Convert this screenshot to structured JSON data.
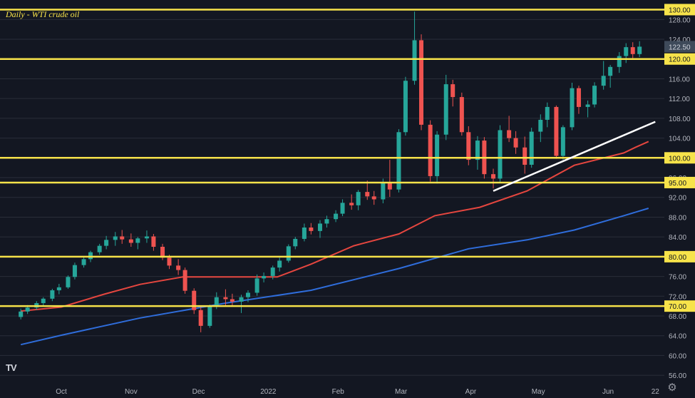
{
  "chart_data": {
    "type": "candlestick",
    "title": "Daily - WTI crude oil",
    "x_ticks": [
      "Oct",
      "Nov",
      "Dec",
      "2022",
      "Feb",
      "Mar",
      "Apr",
      "May",
      "Jun",
      "22"
    ],
    "y_ticks": [
      56.0,
      60.0,
      64.0,
      68.0,
      72.0,
      76.0,
      80.0,
      84.0,
      88.0,
      92.0,
      96.0,
      100.0,
      104.0,
      108.0,
      112.0,
      116.0,
      120.0,
      124.0,
      128.0
    ],
    "ylim": [
      54.0,
      130.5
    ],
    "price_label": "122.50",
    "horizontal_levels": [
      {
        "label": "130.00",
        "value": 130.0
      },
      {
        "label": "120.00",
        "value": 120.0
      },
      {
        "label": "100.00",
        "value": 100.0
      },
      {
        "label": "95.00",
        "value": 95.0
      },
      {
        "label": "80.00",
        "value": 80.0
      },
      {
        "label": "70.00",
        "value": 70.0
      }
    ],
    "trendline": {
      "from": {
        "date": "2022-04-11",
        "value": 93.3
      },
      "to": {
        "date": "2022-06-22",
        "value": 107.3
      }
    },
    "moving_averages": [
      {
        "color": "#e5463f",
        "points": [
          [
            "2021-09-13",
            69.0
          ],
          [
            "2021-10-01",
            69.8
          ],
          [
            "2021-10-20",
            72.4
          ],
          [
            "2021-11-05",
            74.4
          ],
          [
            "2021-11-24",
            75.9
          ],
          [
            "2021-12-13",
            75.9
          ],
          [
            "2022-01-05",
            75.9
          ],
          [
            "2022-01-20",
            78.5
          ],
          [
            "2022-02-08",
            82.2
          ],
          [
            "2022-02-28",
            84.6
          ],
          [
            "2022-03-16",
            88.3
          ],
          [
            "2022-04-05",
            90.0
          ],
          [
            "2022-04-26",
            93.3
          ],
          [
            "2022-05-17",
            98.5
          ],
          [
            "2022-06-08",
            101.0
          ],
          [
            "2022-06-13",
            102.1
          ],
          [
            "2022-06-19",
            103.3
          ]
        ]
      },
      {
        "color": "#2f6ddb",
        "points": [
          [
            "2021-09-13",
            62.2
          ],
          [
            "2021-10-01",
            64.1
          ],
          [
            "2021-11-05",
            67.6
          ],
          [
            "2021-12-13",
            70.6
          ],
          [
            "2022-01-20",
            73.2
          ],
          [
            "2022-02-28",
            77.6
          ],
          [
            "2022-03-31",
            81.6
          ],
          [
            "2022-04-26",
            83.4
          ],
          [
            "2022-05-17",
            85.4
          ],
          [
            "2022-06-08",
            88.3
          ],
          [
            "2022-06-19",
            89.8
          ]
        ]
      }
    ],
    "candles": [
      [
        "2021-09-13",
        67.8,
        69.5,
        67.3,
        68.9
      ],
      [
        "2021-09-16",
        68.9,
        70.2,
        68.4,
        69.7
      ],
      [
        "2021-09-20",
        69.7,
        71.0,
        69.2,
        70.6
      ],
      [
        "2021-09-23",
        70.6,
        71.8,
        70.0,
        71.5
      ],
      [
        "2021-09-27",
        71.5,
        73.5,
        71.0,
        73.2
      ],
      [
        "2021-09-30",
        73.2,
        74.5,
        72.4,
        73.8
      ],
      [
        "2021-10-04",
        73.8,
        76.2,
        73.5,
        75.9
      ],
      [
        "2021-10-07",
        75.9,
        78.8,
        75.4,
        78.3
      ],
      [
        "2021-10-11",
        78.3,
        80.0,
        77.8,
        79.5
      ],
      [
        "2021-10-14",
        79.5,
        81.2,
        78.9,
        80.9
      ],
      [
        "2021-10-18",
        80.9,
        82.6,
        80.4,
        82.2
      ],
      [
        "2021-10-21",
        82.2,
        84.2,
        81.5,
        83.4
      ],
      [
        "2021-10-25",
        83.4,
        85.0,
        82.2,
        84.1
      ],
      [
        "2021-10-28",
        84.1,
        85.4,
        82.6,
        83.5
      ],
      [
        "2021-11-01",
        83.5,
        84.7,
        82.0,
        82.8
      ],
      [
        "2021-11-04",
        82.8,
        84.0,
        81.5,
        83.7
      ],
      [
        "2021-11-08",
        83.7,
        85.3,
        82.8,
        84.1
      ],
      [
        "2021-11-11",
        84.1,
        84.6,
        81.2,
        82.0
      ],
      [
        "2021-11-15",
        82.0,
        82.6,
        79.3,
        79.8
      ],
      [
        "2021-11-18",
        79.8,
        80.4,
        77.5,
        78.2
      ],
      [
        "2021-11-22",
        78.2,
        79.5,
        76.3,
        77.3
      ],
      [
        "2021-11-25",
        77.3,
        77.8,
        72.5,
        73.1
      ],
      [
        "2021-11-29",
        73.1,
        73.6,
        68.4,
        69.2
      ],
      [
        "2021-12-02",
        69.2,
        69.8,
        64.7,
        66.0
      ],
      [
        "2021-12-06",
        66.0,
        70.3,
        65.6,
        70.0
      ],
      [
        "2021-12-09",
        70.0,
        72.8,
        69.4,
        71.8
      ],
      [
        "2021-12-13",
        71.8,
        73.4,
        70.1,
        71.4
      ],
      [
        "2021-12-16",
        71.4,
        72.5,
        70.0,
        70.9
      ],
      [
        "2021-12-20",
        70.9,
        72.3,
        68.6,
        71.8
      ],
      [
        "2021-12-23",
        71.8,
        73.2,
        70.8,
        72.7
      ],
      [
        "2021-12-27",
        72.7,
        76.4,
        72.1,
        75.6
      ],
      [
        "2021-12-30",
        75.6,
        76.8,
        74.8,
        76.1
      ],
      [
        "2022-01-03",
        76.1,
        78.2,
        75.4,
        77.8
      ],
      [
        "2022-01-06",
        77.8,
        79.8,
        77.0,
        79.2
      ],
      [
        "2022-01-10",
        79.2,
        82.5,
        78.8,
        82.1
      ],
      [
        "2022-01-13",
        82.1,
        84.0,
        81.5,
        83.6
      ],
      [
        "2022-01-17",
        83.6,
        86.7,
        83.1,
        85.9
      ],
      [
        "2022-01-20",
        85.9,
        86.8,
        84.5,
        85.2
      ],
      [
        "2022-01-24",
        85.2,
        87.4,
        83.8,
        86.7
      ],
      [
        "2022-01-27",
        86.7,
        88.3,
        85.9,
        87.6
      ],
      [
        "2022-01-31",
        87.6,
        89.4,
        87.0,
        88.7
      ],
      [
        "2022-02-03",
        88.7,
        91.6,
        88.2,
        90.9
      ],
      [
        "2022-02-07",
        90.9,
        92.6,
        89.5,
        90.4
      ],
      [
        "2022-02-10",
        90.4,
        93.5,
        89.4,
        93.1
      ],
      [
        "2022-02-14",
        93.1,
        95.4,
        91.5,
        92.2
      ],
      [
        "2022-02-17",
        92.2,
        93.3,
        90.5,
        91.6
      ],
      [
        "2022-02-21",
        91.6,
        95.8,
        90.8,
        95.1
      ],
      [
        "2022-02-24",
        95.1,
        99.6,
        92.1,
        93.6
      ],
      [
        "2022-02-28",
        93.6,
        105.8,
        93.0,
        105.2
      ],
      [
        "2022-03-03",
        105.2,
        116.4,
        104.5,
        115.6
      ],
      [
        "2022-03-07",
        115.6,
        129.6,
        114.8,
        123.8
      ],
      [
        "2022-03-10",
        123.8,
        125.0,
        105.6,
        106.7
      ],
      [
        "2022-03-14",
        106.7,
        107.6,
        95.2,
        96.3
      ],
      [
        "2022-03-17",
        96.3,
        105.4,
        94.8,
        104.7
      ],
      [
        "2022-03-21",
        104.7,
        116.8,
        103.6,
        114.9
      ],
      [
        "2022-03-24",
        114.9,
        115.8,
        110.4,
        112.3
      ],
      [
        "2022-03-28",
        112.3,
        113.2,
        104.5,
        105.2
      ],
      [
        "2022-03-31",
        105.2,
        106.4,
        98.5,
        99.6
      ],
      [
        "2022-04-04",
        99.6,
        104.4,
        97.6,
        103.5
      ],
      [
        "2022-04-07",
        103.5,
        104.2,
        95.8,
        96.7
      ],
      [
        "2022-04-11",
        96.7,
        97.8,
        93.8,
        95.8
      ],
      [
        "2022-04-14",
        95.8,
        106.6,
        95.1,
        105.6
      ],
      [
        "2022-04-18",
        105.6,
        108.5,
        103.2,
        104.0
      ],
      [
        "2022-04-21",
        104.0,
        105.4,
        100.8,
        102.1
      ],
      [
        "2022-04-25",
        102.1,
        104.3,
        96.8,
        98.6
      ],
      [
        "2022-04-28",
        98.6,
        106.1,
        98.0,
        105.3
      ],
      [
        "2022-05-02",
        105.3,
        108.8,
        103.2,
        107.7
      ],
      [
        "2022-05-05",
        107.7,
        111.2,
        106.2,
        110.3
      ],
      [
        "2022-05-09",
        110.3,
        110.6,
        99.8,
        100.4
      ],
      [
        "2022-05-12",
        100.4,
        106.6,
        99.6,
        106.2
      ],
      [
        "2022-05-16",
        106.2,
        115.2,
        105.6,
        114.1
      ],
      [
        "2022-05-19",
        114.1,
        114.6,
        108.9,
        110.3
      ],
      [
        "2022-05-23",
        110.3,
        111.6,
        108.2,
        110.8
      ],
      [
        "2022-05-26",
        110.8,
        115.3,
        110.2,
        114.6
      ],
      [
        "2022-05-30",
        114.6,
        119.6,
        113.8,
        116.6
      ],
      [
        "2022-06-02",
        116.6,
        118.8,
        114.2,
        118.4
      ],
      [
        "2022-06-06",
        118.4,
        121.4,
        117.2,
        120.6
      ],
      [
        "2022-06-09",
        120.6,
        123.2,
        119.2,
        122.4
      ],
      [
        "2022-06-12",
        122.4,
        123.4,
        120.2,
        121.0
      ],
      [
        "2022-06-15",
        121.0,
        123.6,
        120.4,
        122.5
      ]
    ],
    "colors": {
      "background": "#131722",
      "grid": "#2a2e39",
      "up": "#26a69a",
      "down": "#ef5350",
      "levels": "#f7e34a",
      "trendline": "#ffffff",
      "axis_text": "#b2b5be",
      "price_label": "#3e4a5a"
    }
  }
}
